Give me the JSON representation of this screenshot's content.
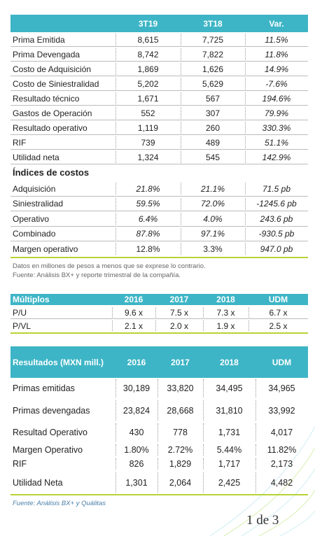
{
  "table1": {
    "header": [
      "3T19",
      "3T18",
      "Var."
    ],
    "rows": [
      [
        "Prima Emitida",
        "8,615",
        "7,725",
        "11.5%"
      ],
      [
        "Prima Devengada",
        "8,742",
        "7,822",
        "11.8%"
      ],
      [
        "Costo de Adquisición",
        "1,869",
        "1,626",
        "14.9%"
      ],
      [
        "Costo de Siniestralidad",
        "5,202",
        "5,629",
        "-7.6%"
      ],
      [
        "Resultado técnico",
        "1,671",
        "567",
        "194.6%"
      ],
      [
        "Gastos de Operación",
        "552",
        "307",
        "79.9%"
      ],
      [
        "Resultado operativo",
        "1,119",
        "260",
        "330.3%"
      ],
      [
        "RIF",
        "739",
        "489",
        "51.1%"
      ],
      [
        "Utilidad neta",
        "1,324",
        "545",
        "142.9%"
      ]
    ],
    "section": "Índices de costos",
    "index_rows": [
      [
        "Adquisición",
        "21.8%",
        "21.1%",
        "71.5 pb"
      ],
      [
        "Siniestralidad",
        "59.5%",
        "72.0%",
        "-1245.6 pb"
      ],
      [
        "Operativo",
        "6.4%",
        "4.0%",
        "243.6 pb"
      ],
      [
        "Combinado",
        "87.8%",
        "97.1%",
        "-930.5 pb"
      ],
      [
        "Margen operativo",
        "12.8%",
        "3.3%",
        "947.0 pb"
      ]
    ]
  },
  "note": [
    "Datos en millones de pesos a menos que se exprese lo contrario.",
    "Fuente: Análisis BX+ y reporte trimestral de la compañía."
  ],
  "table2": {
    "header": [
      "Múltiplos",
      "2016",
      "2017",
      "2018",
      "UDM"
    ],
    "rows": [
      [
        "P/U",
        "9.6 x",
        "7.5 x",
        "7.3 x",
        "6.7 x"
      ],
      [
        "P/VL",
        "2.1 x",
        "2.0 x",
        "1.9 x",
        "2.5 x"
      ]
    ]
  },
  "table3": {
    "header": [
      "Resultados (MXN mill.)",
      "2016",
      "2017",
      "2018",
      "UDM"
    ],
    "rows": [
      [
        "Primas emitidas",
        "30,189",
        "33,820",
        "34,495",
        "34,965"
      ],
      [
        "Primas devengadas",
        "23,824",
        "28,668",
        "31,810",
        "33,992"
      ],
      [
        "Resultad Operativo",
        "430",
        "778",
        "1,731",
        "4,017"
      ],
      [
        "Margen Operativo",
        "1.80%",
        "2.72%",
        "5.44%",
        "11.82%"
      ],
      [
        "RIF",
        "826",
        "1,829",
        "1,717",
        "2,173"
      ],
      [
        "Utilidad Neta",
        "1,301",
        "2,064",
        "2,425",
        "4,482"
      ]
    ]
  },
  "footnote": "Fuente: Análisis BX+ y Quálitas",
  "page": "1 de 3"
}
